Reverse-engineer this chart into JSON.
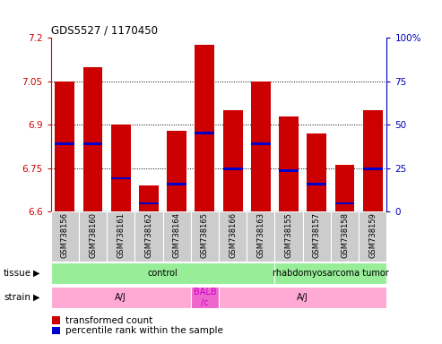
{
  "title": "GDS5527 / 1170450",
  "samples": [
    "GSM738156",
    "GSM738160",
    "GSM738161",
    "GSM738162",
    "GSM738164",
    "GSM738165",
    "GSM738166",
    "GSM738163",
    "GSM738155",
    "GSM738157",
    "GSM738158",
    "GSM738159"
  ],
  "bar_values": [
    7.05,
    7.1,
    6.9,
    6.69,
    6.88,
    7.175,
    6.95,
    7.05,
    6.93,
    6.87,
    6.76,
    6.95
  ],
  "bar_base": 6.6,
  "blue_values": [
    6.835,
    6.835,
    6.715,
    6.628,
    6.695,
    6.872,
    6.748,
    6.835,
    6.742,
    6.695,
    6.628,
    6.748
  ],
  "ylim_left": [
    6.6,
    7.2
  ],
  "ylim_right": [
    0,
    100
  ],
  "yticks_left": [
    6.6,
    6.75,
    6.9,
    7.05,
    7.2
  ],
  "yticks_right": [
    0,
    25,
    50,
    75,
    100
  ],
  "ytick_labels_left": [
    "6.6",
    "6.75",
    "6.9",
    "7.05",
    "7.2"
  ],
  "ytick_labels_right": [
    "0",
    "25",
    "50",
    "75",
    "100%"
  ],
  "hline_values": [
    6.75,
    6.9,
    7.05
  ],
  "tissue_groups": [
    {
      "label": "control",
      "start": 0,
      "end": 8,
      "color": "#98EE98"
    },
    {
      "label": "rhabdomyosarcoma tumor",
      "start": 8,
      "end": 12,
      "color": "#98EE98"
    }
  ],
  "strain_groups": [
    {
      "label": "A/J",
      "start": 0,
      "end": 5,
      "color": "#FFAAD4"
    },
    {
      "label": "BALB\n/c",
      "start": 5,
      "end": 6,
      "color": "#EE66CC"
    },
    {
      "label": "A/J",
      "start": 6,
      "end": 12,
      "color": "#FFAAD4"
    }
  ],
  "bar_color": "#CC0000",
  "blue_color": "#0000CC",
  "tick_color_left": "#CC0000",
  "tick_color_right": "#0000BB"
}
